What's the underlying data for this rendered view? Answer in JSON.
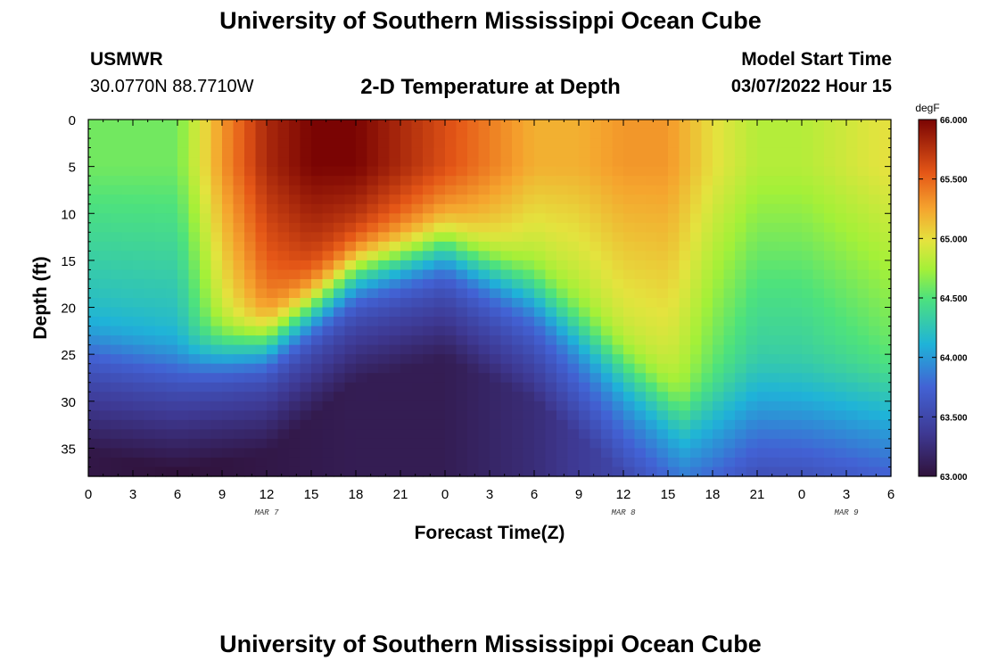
{
  "page": {
    "title": "University of Southern Mississippi Ocean Cube",
    "footer_title": "University of Southern Mississippi Ocean Cube",
    "station": "USMWR",
    "coordinates": "30.0770N  88.7710W",
    "subtitle": "2-D Temperature at Depth",
    "model_start_label": "Model Start Time",
    "model_start_value": "03/07/2022 Hour 15"
  },
  "chart_data": {
    "type": "heatmap",
    "title": "2-D Temperature at Depth",
    "xlabel": "Forecast Time(Z)",
    "ylabel": "Depth (ft)",
    "x_tick_labels": [
      "0",
      "3",
      "6",
      "9",
      "12",
      "15",
      "18",
      "21",
      "0",
      "3",
      "6",
      "9",
      "12",
      "15",
      "18",
      "21",
      "0",
      "3",
      "6"
    ],
    "x_range_hours": [
      0,
      54
    ],
    "y_range_ft": [
      0,
      38
    ],
    "y_ticks": [
      0,
      5,
      10,
      15,
      20,
      25,
      30,
      35
    ],
    "y_tick_labels": [
      "0",
      "5",
      "10",
      "15",
      "20",
      "25",
      "30",
      "35"
    ],
    "date_labels": [
      {
        "text": "MAR 7",
        "hour": 12
      },
      {
        "text": "MAR 8",
        "hour": 36
      },
      {
        "text": "MAR 9",
        "hour": 51
      }
    ],
    "colorbar": {
      "unit": "degF",
      "min": 63.0,
      "max": 66.0,
      "ticks": [
        66.0,
        65.5,
        65.0,
        64.5,
        64.0,
        63.5,
        63.0
      ],
      "tick_labels": [
        "66.000",
        "65.500",
        "65.000",
        "64.500",
        "64.000",
        "63.500",
        "63.000"
      ]
    },
    "thermocline_depth_ft": {
      "hours": [
        0,
        6,
        12,
        18,
        24,
        30,
        36,
        40,
        45,
        50,
        54
      ],
      "values": [
        23.5,
        25.5,
        23.5,
        16.0,
        13.5,
        18.0,
        26.0,
        31.0,
        25.5,
        26.0,
        26.5
      ]
    },
    "surface_temperature_degF": {
      "hours": [
        0,
        3,
        6,
        9,
        12,
        15,
        18,
        21,
        24,
        27,
        30,
        33,
        36,
        39,
        42,
        45,
        48,
        51,
        54
      ],
      "values": [
        64.6,
        64.6,
        64.6,
        65.3,
        65.8,
        66.0,
        66.0,
        65.8,
        65.6,
        65.4,
        65.2,
        65.2,
        65.3,
        65.3,
        65.0,
        64.8,
        64.8,
        64.9,
        65.0
      ]
    },
    "bottom_temperature_degF": {
      "hours": [
        0,
        6,
        12,
        18,
        24,
        30,
        36,
        42,
        48,
        54
      ],
      "values": [
        63.05,
        63.0,
        63.05,
        63.1,
        63.1,
        63.25,
        63.5,
        63.6,
        63.6,
        63.7
      ]
    }
  }
}
